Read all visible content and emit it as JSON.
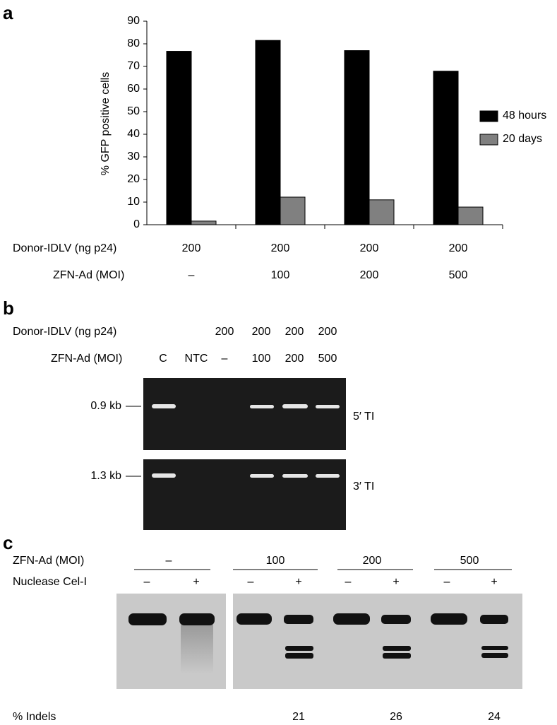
{
  "chart_data": {
    "type": "bar",
    "panel_label": "a",
    "y_label": "% GFP positive cells",
    "categories": [
      null,
      null,
      null,
      null
    ],
    "series": [
      {
        "name": "48 hours",
        "color": "#000000",
        "values": [
          76.7,
          81.5,
          77.0,
          67.9
        ]
      },
      {
        "name": "20 days",
        "color": "#808080",
        "values": [
          1.6,
          12.2,
          11.0,
          7.8
        ]
      }
    ],
    "ylim": [
      0,
      90
    ],
    "yticks": [
      0,
      10,
      20,
      30,
      40,
      50,
      60,
      70,
      80,
      90
    ],
    "grid": false,
    "legend": "right",
    "x_rows": [
      {
        "label": "Donor-IDLV (ng p24)",
        "values": [
          "200",
          "200",
          "200",
          "200"
        ]
      },
      {
        "label": "ZFN-Ad (MOI)",
        "values": [
          "–",
          "100",
          "200",
          "500"
        ]
      }
    ]
  },
  "gel_pcr": {
    "panel_label": "b",
    "rows": [
      {
        "label": "Donor-IDLV (ng p24)",
        "values": [
          null,
          null,
          "200",
          "200",
          "200",
          "200"
        ]
      },
      {
        "label": "ZFN-Ad (MOI)",
        "values": [
          "C",
          "NTC",
          "–",
          "100",
          "200",
          "500"
        ]
      }
    ],
    "gels": [
      {
        "marker": "0.9 kb",
        "label": "5′ TI"
      },
      {
        "marker": "1.3 kb",
        "label": "3′ TI"
      }
    ]
  },
  "gel_cel1": {
    "panel_label": "c",
    "zfn_label": "ZFN-Ad (MOI)",
    "groups": [
      "–",
      "100",
      "200",
      "500"
    ],
    "nuclease_label": "Nuclease Cel-I",
    "nuclease": [
      "–",
      "+",
      "–",
      "+",
      "–",
      "+",
      "–",
      "+"
    ],
    "indels_label": "% Indels",
    "indels": [
      null,
      21,
      26,
      24
    ]
  }
}
